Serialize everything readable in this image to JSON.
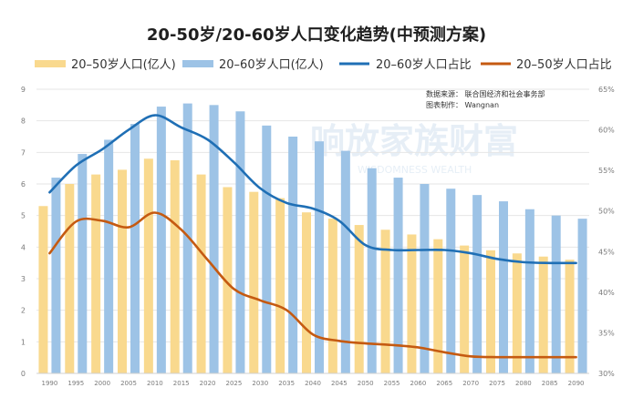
{
  "chart_data": {
    "type": "bar",
    "title": "20-50岁/20-60岁人口变化趋势(中预测方案)",
    "categories": [
      "1990",
      "1995",
      "2000",
      "2005",
      "2010",
      "2015",
      "2020",
      "2025",
      "2030",
      "2035",
      "2040",
      "2045",
      "2050",
      "2055",
      "2060",
      "2065",
      "2070",
      "2075",
      "2080",
      "2085",
      "2090"
    ],
    "bar_series": [
      {
        "name": "20–50岁人口(亿人)",
        "color": "#F9D98E",
        "values": [
          5.3,
          6.0,
          6.3,
          6.45,
          6.8,
          6.75,
          6.3,
          5.9,
          5.75,
          5.55,
          5.1,
          4.9,
          4.7,
          4.55,
          4.4,
          4.25,
          4.05,
          3.9,
          3.8,
          3.7,
          3.6
        ]
      },
      {
        "name": "20–60岁人口(亿人)",
        "color": "#9DC3E6",
        "values": [
          6.2,
          6.95,
          7.4,
          7.9,
          8.45,
          8.55,
          8.5,
          8.3,
          7.85,
          7.5,
          7.35,
          7.05,
          6.5,
          6.2,
          6.0,
          5.85,
          5.65,
          5.45,
          5.2,
          5.0,
          4.9
        ]
      }
    ],
    "line_series": [
      {
        "name": "20–60岁人口占比",
        "color": "#1F6FB5",
        "values": [
          52.3,
          55.6,
          57.6,
          60.0,
          61.8,
          60.3,
          58.8,
          56.0,
          52.8,
          51.0,
          50.3,
          48.8,
          45.8,
          45.2,
          45.2,
          45.2,
          44.8,
          44.1,
          43.7,
          43.6,
          43.6
        ]
      },
      {
        "name": "20–50岁人口占比",
        "color": "#C55A11",
        "values": [
          44.8,
          48.7,
          48.8,
          48.0,
          49.8,
          47.7,
          44.0,
          40.4,
          39.0,
          37.8,
          34.8,
          34.0,
          33.7,
          33.5,
          33.2,
          32.6,
          32.1,
          32.0,
          32.0,
          32.0,
          32.0
        ]
      }
    ],
    "y_left": {
      "min": 0,
      "max": 9,
      "ticks": [
        "0",
        "1",
        "2",
        "3",
        "4",
        "5",
        "6",
        "7",
        "8",
        "9"
      ]
    },
    "y_right": {
      "min": 30,
      "max": 65,
      "ticks": [
        "30%",
        "35%",
        "40%",
        "45%",
        "50%",
        "55%",
        "60%",
        "65%"
      ]
    },
    "grid": true,
    "legend_position": "top",
    "source_lines": [
      "数据来源：  联合国经济和社会事务部",
      "图表制作：  Wangnan"
    ],
    "watermark": [
      "响放家族财富",
      "WISDOMNESS WEALTH"
    ]
  }
}
